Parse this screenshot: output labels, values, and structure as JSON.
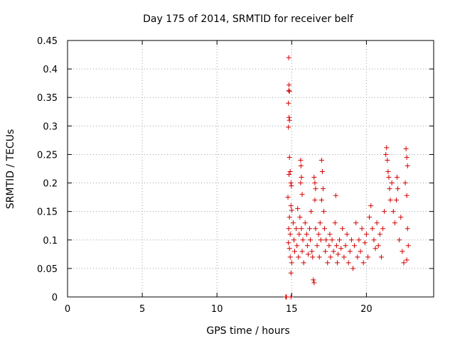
{
  "chart_data": {
    "type": "scatter",
    "title": "Day 175 of 2014, SRMTID for receiver belf",
    "xlabel": "GPS time / hours",
    "ylabel": "SRMTID / TECUs",
    "xlim": [
      0,
      24.5
    ],
    "ylim": [
      0,
      0.45
    ],
    "xticks": [
      0,
      5,
      10,
      15,
      20
    ],
    "xtick_labels": [
      "0",
      "5",
      "10",
      "15",
      "20"
    ],
    "yticks": [
      0,
      0.05,
      0.1,
      0.15,
      0.2,
      0.25,
      0.3,
      0.35,
      0.4,
      0.45
    ],
    "ytick_labels": [
      "0",
      "0.05",
      "0.1",
      "0.15",
      "0.2",
      "0.25",
      "0.3",
      "0.35",
      "0.4",
      "0.45"
    ],
    "grid": true,
    "marker": "+",
    "series": [
      {
        "name": "SRMTID",
        "color": "#d40000",
        "points": [
          [
            14.6,
            0.0
          ],
          [
            14.65,
            0.0
          ],
          [
            14.95,
            0.0
          ],
          [
            14.8,
            0.42
          ],
          [
            14.82,
            0.372
          ],
          [
            14.8,
            0.362
          ],
          [
            14.85,
            0.361
          ],
          [
            14.78,
            0.34
          ],
          [
            14.82,
            0.315
          ],
          [
            14.85,
            0.31
          ],
          [
            14.78,
            0.298
          ],
          [
            14.85,
            0.245
          ],
          [
            14.9,
            0.22
          ],
          [
            14.82,
            0.215
          ],
          [
            14.95,
            0.2
          ],
          [
            14.98,
            0.195
          ],
          [
            14.75,
            0.175
          ],
          [
            14.95,
            0.16
          ],
          [
            15.0,
            0.152
          ],
          [
            14.85,
            0.14
          ],
          [
            14.8,
            0.12
          ],
          [
            14.9,
            0.11
          ],
          [
            14.78,
            0.095
          ],
          [
            14.85,
            0.085
          ],
          [
            14.9,
            0.07
          ],
          [
            15.0,
            0.06
          ],
          [
            14.95,
            0.042
          ],
          [
            15.1,
            0.13
          ],
          [
            15.15,
            0.1
          ],
          [
            15.2,
            0.08
          ],
          [
            15.3,
            0.12
          ],
          [
            15.35,
            0.09
          ],
          [
            15.4,
            0.155
          ],
          [
            15.45,
            0.07
          ],
          [
            15.5,
            0.11
          ],
          [
            15.55,
            0.14
          ],
          [
            15.6,
            0.24
          ],
          [
            15.62,
            0.23
          ],
          [
            15.65,
            0.21
          ],
          [
            15.6,
            0.2
          ],
          [
            15.7,
            0.18
          ],
          [
            15.65,
            0.12
          ],
          [
            15.7,
            0.08
          ],
          [
            15.75,
            0.1
          ],
          [
            15.8,
            0.06
          ],
          [
            15.9,
            0.13
          ],
          [
            16.0,
            0.11
          ],
          [
            16.05,
            0.09
          ],
          [
            16.1,
            0.075
          ],
          [
            16.2,
            0.12
          ],
          [
            16.25,
            0.1
          ],
          [
            16.3,
            0.15
          ],
          [
            16.35,
            0.08
          ],
          [
            16.4,
            0.07
          ],
          [
            16.45,
            0.03
          ],
          [
            16.5,
            0.025
          ],
          [
            16.5,
            0.21
          ],
          [
            16.55,
            0.2
          ],
          [
            16.6,
            0.19
          ],
          [
            16.55,
            0.17
          ],
          [
            16.6,
            0.12
          ],
          [
            16.7,
            0.09
          ],
          [
            16.8,
            0.11
          ],
          [
            16.85,
            0.07
          ],
          [
            16.9,
            0.13
          ],
          [
            16.95,
            0.1
          ],
          [
            17.0,
            0.24
          ],
          [
            17.05,
            0.22
          ],
          [
            17.1,
            0.19
          ],
          [
            17.0,
            0.17
          ],
          [
            17.15,
            0.15
          ],
          [
            17.2,
            0.12
          ],
          [
            17.25,
            0.08
          ],
          [
            17.3,
            0.1
          ],
          [
            17.4,
            0.06
          ],
          [
            17.5,
            0.09
          ],
          [
            17.55,
            0.11
          ],
          [
            17.6,
            0.07
          ],
          [
            17.7,
            0.1
          ],
          [
            17.8,
            0.08
          ],
          [
            17.9,
            0.13
          ],
          [
            17.95,
            0.178
          ],
          [
            18.0,
            0.09
          ],
          [
            18.05,
            0.06
          ],
          [
            18.1,
            0.075
          ],
          [
            18.2,
            0.1
          ],
          [
            18.3,
            0.085
          ],
          [
            18.4,
            0.12
          ],
          [
            18.5,
            0.07
          ],
          [
            18.6,
            0.09
          ],
          [
            18.7,
            0.11
          ],
          [
            18.8,
            0.06
          ],
          [
            18.9,
            0.08
          ],
          [
            19.0,
            0.1
          ],
          [
            19.1,
            0.05
          ],
          [
            19.2,
            0.09
          ],
          [
            19.3,
            0.13
          ],
          [
            19.4,
            0.07
          ],
          [
            19.5,
            0.1
          ],
          [
            19.6,
            0.08
          ],
          [
            19.7,
            0.12
          ],
          [
            19.8,
            0.06
          ],
          [
            19.9,
            0.095
          ],
          [
            20.0,
            0.11
          ],
          [
            20.1,
            0.07
          ],
          [
            20.2,
            0.14
          ],
          [
            20.3,
            0.16
          ],
          [
            20.4,
            0.12
          ],
          [
            20.5,
            0.1
          ],
          [
            20.6,
            0.085
          ],
          [
            20.7,
            0.13
          ],
          [
            20.8,
            0.09
          ],
          [
            20.9,
            0.11
          ],
          [
            21.0,
            0.07
          ],
          [
            21.1,
            0.12
          ],
          [
            21.2,
            0.15
          ],
          [
            21.3,
            0.25
          ],
          [
            21.35,
            0.262
          ],
          [
            21.4,
            0.24
          ],
          [
            21.45,
            0.22
          ],
          [
            21.5,
            0.21
          ],
          [
            21.55,
            0.19
          ],
          [
            21.6,
            0.17
          ],
          [
            21.7,
            0.2
          ],
          [
            21.8,
            0.15
          ],
          [
            21.9,
            0.13
          ],
          [
            22.0,
            0.17
          ],
          [
            22.05,
            0.21
          ],
          [
            22.1,
            0.19
          ],
          [
            22.2,
            0.1
          ],
          [
            22.3,
            0.14
          ],
          [
            22.4,
            0.08
          ],
          [
            22.5,
            0.06
          ],
          [
            22.6,
            0.2
          ],
          [
            22.65,
            0.26
          ],
          [
            22.7,
            0.245
          ],
          [
            22.75,
            0.23
          ],
          [
            22.7,
            0.178
          ],
          [
            22.75,
            0.12
          ],
          [
            22.8,
            0.09
          ],
          [
            22.7,
            0.065
          ]
        ]
      }
    ]
  }
}
